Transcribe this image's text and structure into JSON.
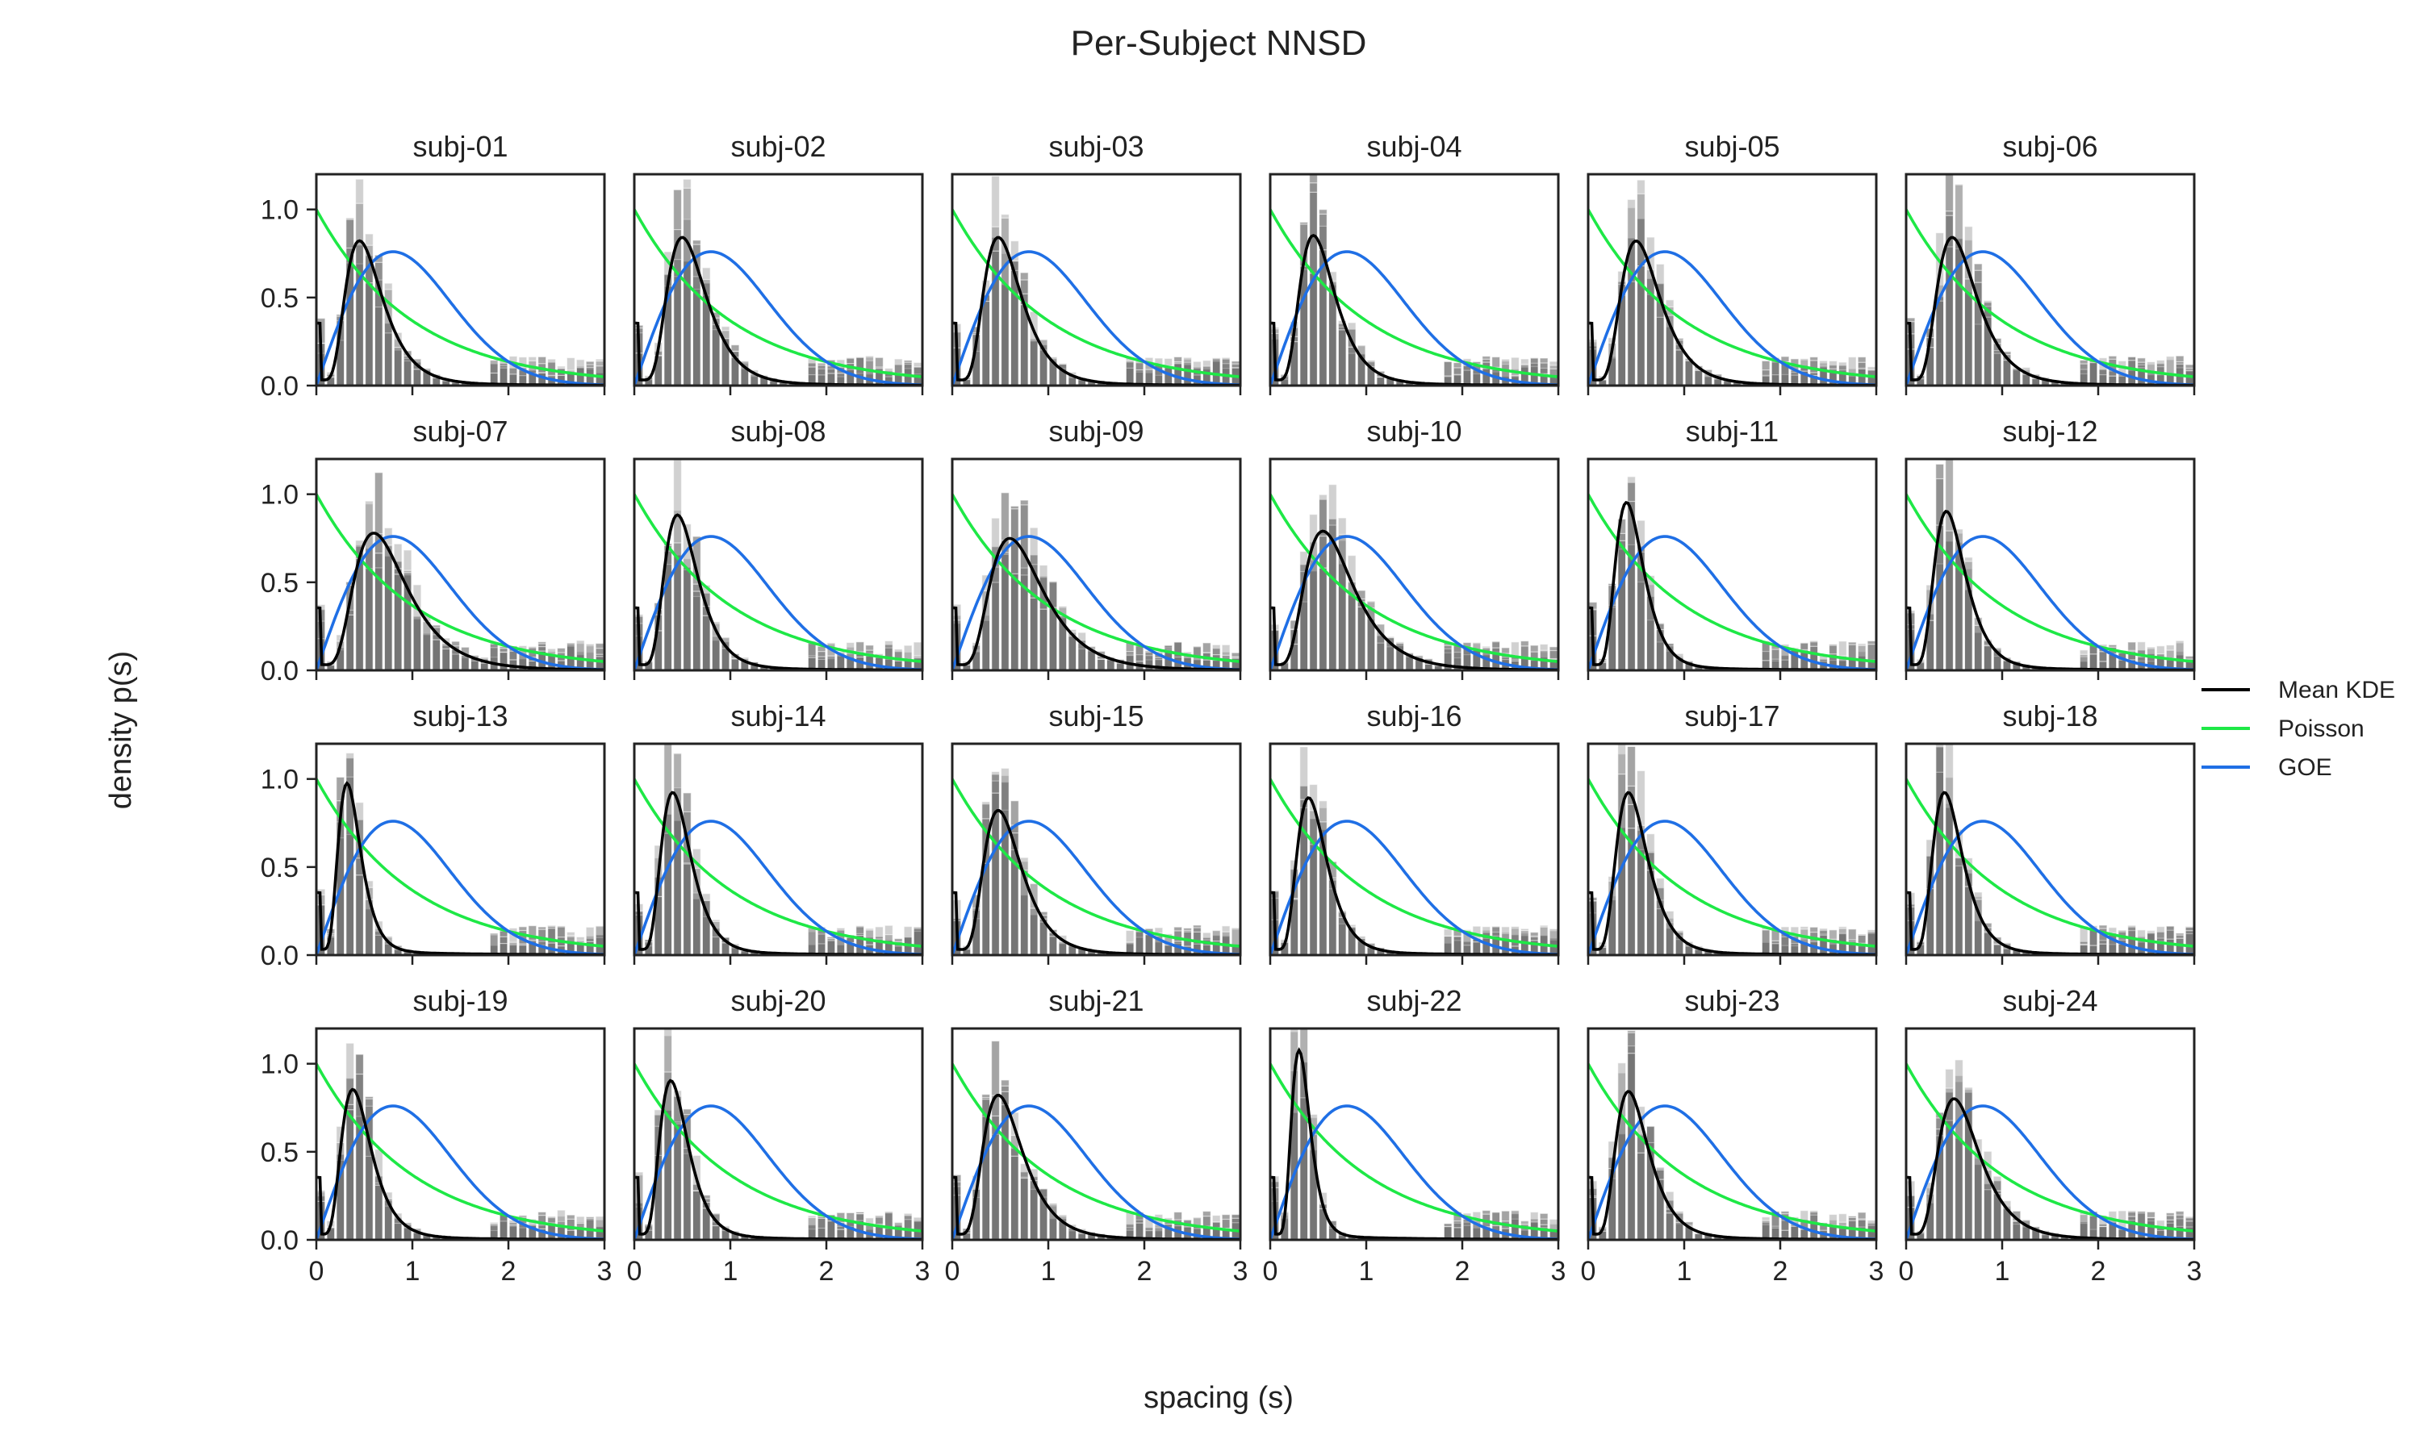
{
  "chart_data": {
    "type": "bar",
    "title": "Per-Subject NNSD",
    "xlabel": "spacing (s)",
    "ylabel": "density p(s)",
    "xlim": [
      0,
      3
    ],
    "ylim": [
      0,
      1.2
    ],
    "x_ticks": [
      "0",
      "1",
      "2",
      "3"
    ],
    "y_ticks": [
      "0.0",
      "0.5",
      "1.0"
    ],
    "grid": false,
    "legend_position": "right",
    "bin_width": 0.1,
    "colors": {
      "mean_kde": "#000000",
      "poisson": "#1ee846",
      "goe": "#1f6fe5",
      "hist": "#595959",
      "frame": "#222222"
    },
    "legend": [
      {
        "label": "Mean KDE",
        "series": "mean_kde"
      },
      {
        "label": "Poisson",
        "series": "poisson"
      },
      {
        "label": "GOE",
        "series": "goe"
      }
    ],
    "reference_curves": {
      "poisson": "p(s) = exp(-s)",
      "goe": "p(s) = (pi/2) s exp(-pi s^2 / 4)"
    },
    "subjects": [
      {
        "name": "subj-01",
        "kde_peak_s": 0.45,
        "kde_peak_p": 0.8,
        "kde_width": 0.42
      },
      {
        "name": "subj-02",
        "kde_peak_s": 0.5,
        "kde_peak_p": 0.82,
        "kde_width": 0.4
      },
      {
        "name": "subj-03",
        "kde_peak_s": 0.48,
        "kde_peak_p": 0.82,
        "kde_width": 0.4
      },
      {
        "name": "subj-04",
        "kde_peak_s": 0.45,
        "kde_peak_p": 0.83,
        "kde_width": 0.4
      },
      {
        "name": "subj-05",
        "kde_peak_s": 0.5,
        "kde_peak_p": 0.8,
        "kde_width": 0.4
      },
      {
        "name": "subj-06",
        "kde_peak_s": 0.48,
        "kde_peak_p": 0.82,
        "kde_width": 0.42
      },
      {
        "name": "subj-07",
        "kde_peak_s": 0.6,
        "kde_peak_p": 0.76,
        "kde_width": 0.45
      },
      {
        "name": "subj-08",
        "kde_peak_s": 0.45,
        "kde_peak_p": 0.86,
        "kde_width": 0.38
      },
      {
        "name": "subj-09",
        "kde_peak_s": 0.6,
        "kde_peak_p": 0.73,
        "kde_width": 0.45
      },
      {
        "name": "subj-10",
        "kde_peak_s": 0.55,
        "kde_peak_p": 0.77,
        "kde_width": 0.45
      },
      {
        "name": "subj-11",
        "kde_peak_s": 0.4,
        "kde_peak_p": 0.93,
        "kde_width": 0.36
      },
      {
        "name": "subj-12",
        "kde_peak_s": 0.42,
        "kde_peak_p": 0.88,
        "kde_width": 0.38
      },
      {
        "name": "subj-13",
        "kde_peak_s": 0.32,
        "kde_peak_p": 0.95,
        "kde_width": 0.36
      },
      {
        "name": "subj-14",
        "kde_peak_s": 0.4,
        "kde_peak_p": 0.9,
        "kde_width": 0.38
      },
      {
        "name": "subj-15",
        "kde_peak_s": 0.48,
        "kde_peak_p": 0.8,
        "kde_width": 0.4
      },
      {
        "name": "subj-16",
        "kde_peak_s": 0.4,
        "kde_peak_p": 0.87,
        "kde_width": 0.38
      },
      {
        "name": "subj-17",
        "kde_peak_s": 0.42,
        "kde_peak_p": 0.9,
        "kde_width": 0.38
      },
      {
        "name": "subj-18",
        "kde_peak_s": 0.4,
        "kde_peak_p": 0.9,
        "kde_width": 0.38
      },
      {
        "name": "subj-19",
        "kde_peak_s": 0.38,
        "kde_peak_p": 0.83,
        "kde_width": 0.4
      },
      {
        "name": "subj-20",
        "kde_peak_s": 0.38,
        "kde_peak_p": 0.88,
        "kde_width": 0.38
      },
      {
        "name": "subj-21",
        "kde_peak_s": 0.48,
        "kde_peak_p": 0.8,
        "kde_width": 0.42
      },
      {
        "name": "subj-22",
        "kde_peak_s": 0.3,
        "kde_peak_p": 1.05,
        "kde_width": 0.32
      },
      {
        "name": "subj-23",
        "kde_peak_s": 0.42,
        "kde_peak_p": 0.82,
        "kde_width": 0.4
      },
      {
        "name": "subj-24",
        "kde_peak_s": 0.5,
        "kde_peak_p": 0.78,
        "kde_width": 0.42
      }
    ]
  }
}
